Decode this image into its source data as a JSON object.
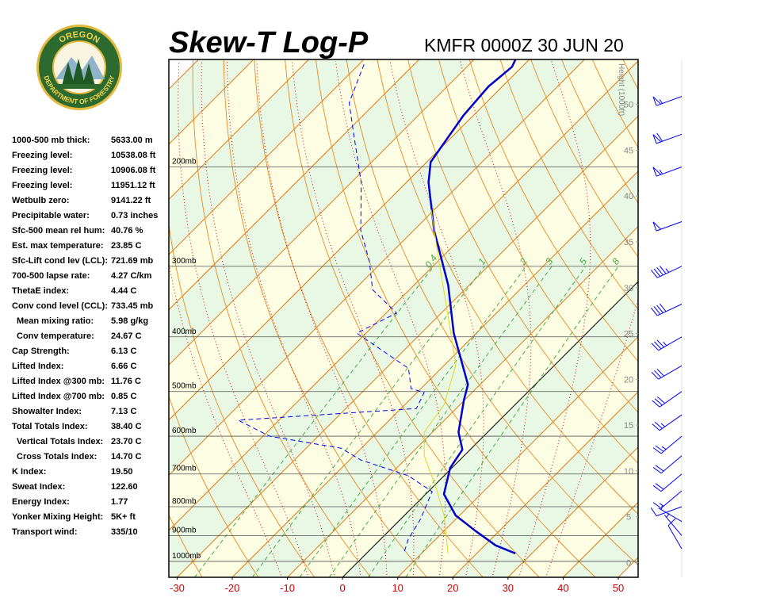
{
  "logo": {
    "top_text": "OREGON",
    "bottom_text": "DEPARTMENT OF FORESTRY"
  },
  "indices": [
    {
      "label": "1000-500 mb thick:",
      "value": "5633.00 m"
    },
    {
      "label": "Freezing level:",
      "value": "10538.08 ft"
    },
    {
      "label": "Freezing level:",
      "value": "10906.08 ft"
    },
    {
      "label": "Freezing level:",
      "value": "11951.12 ft"
    },
    {
      "label": "Wetbulb zero:",
      "value": "9141.22 ft"
    },
    {
      "label": "Precipitable water:",
      "value": "0.73 inches"
    },
    {
      "label": "Sfc-500 mean rel hum:",
      "value": "40.76 %"
    },
    {
      "label": "Est. max temperature:",
      "value": "23.85 C"
    },
    {
      "label": "Sfc-Lift cond lev (LCL):",
      "value": "721.69 mb"
    },
    {
      "label": "700-500 lapse rate:",
      "value": "4.27 C/km"
    },
    {
      "label": "ThetaE index:",
      "value": "4.44 C"
    },
    {
      "label": "Conv cond level (CCL):",
      "value": "733.45 mb"
    },
    {
      "label": "Mean mixing ratio:",
      "value": "5.98 g/kg"
    },
    {
      "label": "Conv temperature:",
      "value": "24.67 C"
    },
    {
      "label": "Cap Strength:",
      "value": "6.13 C"
    },
    {
      "label": "Lifted Index:",
      "value": "6.66 C"
    },
    {
      "label": "Lifted Index @300 mb:",
      "value": "11.76 C"
    },
    {
      "label": "Lifted Index @700 mb:",
      "value": "0.85 C"
    },
    {
      "label": "Showalter Index:",
      "value": "7.13 C"
    },
    {
      "label": "Total Totals Index:",
      "value": "38.40 C"
    },
    {
      "label": "Vertical Totals Index:",
      "value": "23.70 C"
    },
    {
      "label": "Cross Totals Index:",
      "value": "14.70 C"
    },
    {
      "label": "K Index:",
      "value": "19.50"
    },
    {
      "label": "Sweat Index:",
      "value": "122.60"
    },
    {
      "label": "Energy Index:",
      "value": "1.77"
    },
    {
      "label": "Yonker Mixing Height:",
      "value": "5K+ ft"
    },
    {
      "label": "Transport wind:",
      "value": "335/10"
    }
  ],
  "chart_data": {
    "type": "skew-t",
    "title": "Skew-T Log-P",
    "subtitle": "KMFR 0000Z 30 JUN 20",
    "xlim": [
      -31.5,
      53.6
    ],
    "xticks": [
      -30,
      -20,
      -10,
      0,
      10,
      20,
      30,
      40,
      50
    ],
    "ylim": [
      1067,
      129
    ],
    "log_y": true,
    "yticks": [
      {
        "value": 1000,
        "label": "1000mb"
      },
      {
        "value": 900,
        "label": "900mb"
      },
      {
        "value": 800,
        "label": "800mb"
      },
      {
        "value": 700,
        "label": "700mb"
      },
      {
        "value": 600,
        "label": "600mb"
      },
      {
        "value": 500,
        "label": "500mb"
      },
      {
        "value": 400,
        "label": "400mb"
      },
      {
        "value": 300,
        "label": "300mb"
      },
      {
        "value": 200,
        "label": "200mb"
      }
    ],
    "y2label": "Height (1000ft)",
    "y2lim": [
      -1.6,
      54.9
    ],
    "y2ticks": [
      0,
      5,
      10,
      15,
      20,
      25,
      30,
      35,
      40,
      45,
      50
    ],
    "isotherms": [
      -120,
      -110,
      -100,
      -90,
      -80,
      -70,
      -60,
      -50,
      -40,
      -30,
      -20,
      -10,
      0,
      10,
      20,
      30,
      40,
      50
    ],
    "band_colors": [
      "#e8f8e4",
      "#fdfde4"
    ],
    "isotherm_color": "#e07a10",
    "zero_isotherm_color": "#000000",
    "dry_adiabats": [
      -30,
      -20,
      -10,
      0,
      10,
      20,
      30,
      40,
      50,
      60,
      70,
      80,
      90,
      100,
      110,
      120,
      130,
      140,
      150
    ],
    "dry_adiabat_color": "#e88a20",
    "moist_adiabats": [
      -15,
      -10,
      -5,
      0,
      5,
      10,
      15,
      20,
      25,
      30,
      35
    ],
    "moist_adiabat_color": "#cc1010",
    "mixing_ratios": [
      0.4,
      1,
      2,
      3,
      5,
      8
    ],
    "mixing_ratio_color": "#44aa44",
    "series": [
      {
        "color": "#0000cc",
        "style": "solid",
        "width": 2.5,
        "pressure": [
          968,
          937,
          884,
          829,
          760,
          683,
          634,
          590,
          518,
          486,
          394,
          324,
          259,
          213,
          196,
          162,
          144,
          133,
          129
        ],
        "values": [
          27.0,
          22.0,
          15.8,
          9.3,
          3.3,
          -0.3,
          -1.4,
          -5.3,
          -10.1,
          -12.2,
          -24.1,
          -33.8,
          -46.3,
          -56.0,
          -59.3,
          -61.8,
          -62.5,
          -61.8,
          -62.5
        ]
      },
      {
        "color": "#0000ff",
        "style": "dashed",
        "width": 1,
        "pressure": [
          959,
          913,
          842,
          752,
          705,
          661,
          630,
          600,
          562,
          536,
          502,
          494,
          455,
          394,
          363,
          330,
          294,
          259,
          213,
          175,
          154,
          135,
          130
        ],
        "values": [
          6.5,
          5.0,
          3.6,
          0.7,
          -6.5,
          -18.0,
          -23.7,
          -38.8,
          -47.4,
          -17.2,
          -18.7,
          -21.8,
          -25.9,
          -41.7,
          -38.1,
          -46.7,
          -52.4,
          -59.6,
          -68.2,
          -78.3,
          -84.8,
          -88.4,
          -89.4
        ]
      },
      {
        "color": "#e0d820",
        "style": "solid",
        "width": 1,
        "pressure": [
          968,
          829,
          740,
          650,
          590,
          527,
          448,
          369,
          294,
          238
        ],
        "values": [
          14.8,
          7.2,
          0.7,
          -7.2,
          -11.5,
          -12.9,
          -18.0,
          -28.0,
          -39.8,
          -50.6
        ]
      }
    ],
    "winds": {
      "color": "#0000ff",
      "pressure": [
        950,
        900,
        850,
        800,
        750,
        700,
        650,
        600,
        550,
        500,
        450,
        400,
        350,
        300,
        250,
        200,
        175,
        150
      ],
      "direction": [
        330,
        320,
        300,
        250,
        230,
        230,
        230,
        230,
        235,
        235,
        240,
        240,
        245,
        245,
        250,
        250,
        250,
        250
      ],
      "speed": [
        10,
        8,
        5,
        10,
        15,
        20,
        20,
        25,
        25,
        30,
        30,
        35,
        40,
        45,
        50,
        55,
        60,
        55
      ]
    }
  }
}
